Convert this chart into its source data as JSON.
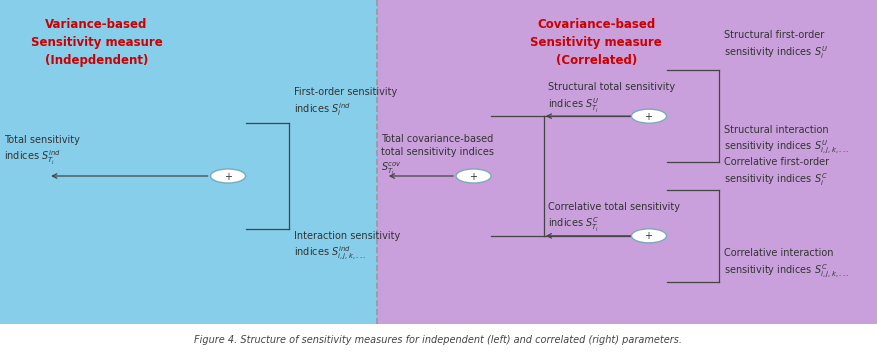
{
  "left_bg_color": "#87CEEB",
  "right_bg_color": "#C9A0DC",
  "title_color": "#CC0000",
  "node_edge_color": "#7aaabb",
  "line_color": "#444444",
  "text_color": "#333333",
  "left_title": "Variance-based\nSensitivity measure\n(Indepdendent)",
  "right_title": "Covariance-based\nSensitivity measure\n(Correlated)",
  "caption": "Figure 4. Structure of sensitivity measures for independent (left) and correlated (right) parameters.",
  "figsize": [
    8.77,
    3.52
  ],
  "dpi": 100
}
